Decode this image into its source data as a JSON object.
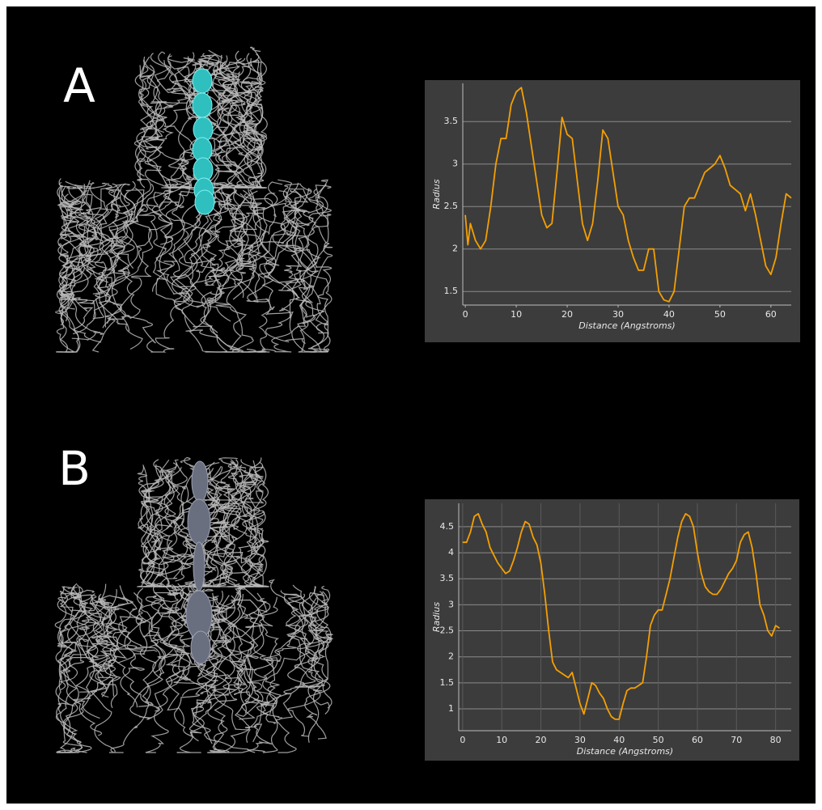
{
  "panel_labels": [
    "A",
    "B"
  ],
  "chart_data": [
    {
      "type": "line",
      "xlabel": "Distance (Angstroms)",
      "ylabel": "Radius",
      "color": "#f5a000",
      "grid": "y",
      "x": [
        0,
        0.5,
        1,
        2,
        3,
        4,
        5,
        6,
        7,
        8,
        9,
        10,
        11,
        12,
        13,
        14,
        15,
        16,
        17,
        18,
        19,
        20,
        21,
        22,
        23,
        24,
        25,
        26,
        27,
        28,
        29,
        30,
        31,
        32,
        33,
        34,
        35,
        36,
        37,
        38,
        39,
        40,
        41,
        42,
        43,
        44,
        45,
        46,
        47,
        48,
        49,
        50,
        51,
        52,
        53,
        54,
        55,
        56,
        57,
        58,
        59,
        60,
        61,
        62,
        63,
        64
      ],
      "values": [
        2.4,
        2.05,
        2.3,
        2.1,
        2.0,
        2.1,
        2.5,
        3.0,
        3.3,
        3.3,
        3.7,
        3.85,
        3.9,
        3.6,
        3.2,
        2.8,
        2.4,
        2.25,
        2.3,
        2.9,
        3.55,
        3.35,
        3.3,
        2.8,
        2.3,
        2.1,
        2.3,
        2.8,
        3.4,
        3.3,
        2.9,
        2.5,
        2.4,
        2.1,
        1.9,
        1.75,
        1.75,
        2.0,
        2.0,
        1.5,
        1.4,
        1.38,
        1.5,
        2.0,
        2.5,
        2.6,
        2.6,
        2.75,
        2.9,
        2.95,
        3.0,
        3.1,
        2.95,
        2.75,
        2.7,
        2.65,
        2.45,
        2.65,
        2.4,
        2.1,
        1.8,
        1.7,
        1.9,
        2.3,
        2.65,
        2.6
      ],
      "xlim": [
        -0.5,
        64
      ],
      "ylim": [
        1.34,
        3.95
      ],
      "xticks": [
        0,
        10,
        20,
        30,
        40,
        50,
        60
      ],
      "yticks": [
        1.5,
        2,
        2.5,
        3,
        3.5
      ]
    },
    {
      "type": "line",
      "xlabel": "Distance (Angstroms)",
      "ylabel": "Radius",
      "color": "#f5a000",
      "grid": "both",
      "x": [
        0,
        1,
        2,
        3,
        4,
        5,
        6,
        7,
        8,
        9,
        10,
        11,
        12,
        13,
        14,
        15,
        16,
        17,
        18,
        19,
        20,
        21,
        22,
        23,
        24,
        25,
        26,
        27,
        28,
        29,
        30,
        31,
        32,
        33,
        34,
        35,
        36,
        37,
        38,
        39,
        40,
        41,
        42,
        43,
        44,
        45,
        46,
        47,
        48,
        49,
        50,
        51,
        52,
        53,
        54,
        55,
        56,
        57,
        58,
        59,
        60,
        61,
        62,
        63,
        64,
        65,
        66,
        67,
        68,
        69,
        70,
        71,
        72,
        73,
        74,
        75,
        76,
        77,
        78,
        79,
        80,
        81
      ],
      "values": [
        4.2,
        4.2,
        4.4,
        4.7,
        4.75,
        4.55,
        4.4,
        4.1,
        3.95,
        3.8,
        3.7,
        3.6,
        3.65,
        3.85,
        4.1,
        4.4,
        4.6,
        4.55,
        4.3,
        4.15,
        3.8,
        3.2,
        2.5,
        1.9,
        1.75,
        1.7,
        1.65,
        1.6,
        1.7,
        1.4,
        1.1,
        0.9,
        1.2,
        1.5,
        1.45,
        1.3,
        1.2,
        1.0,
        0.85,
        0.8,
        0.8,
        1.1,
        1.35,
        1.4,
        1.4,
        1.45,
        1.5,
        2.0,
        2.6,
        2.8,
        2.9,
        2.9,
        3.2,
        3.5,
        3.9,
        4.3,
        4.6,
        4.75,
        4.7,
        4.5,
        4.0,
        3.6,
        3.35,
        3.25,
        3.2,
        3.2,
        3.3,
        3.45,
        3.6,
        3.7,
        3.85,
        4.2,
        4.35,
        4.4,
        4.1,
        3.6,
        3.0,
        2.8,
        2.5,
        2.4,
        2.6,
        2.55
      ],
      "xlim": [
        -1,
        84
      ],
      "ylim": [
        0.58,
        4.95
      ],
      "xticks": [
        0,
        10,
        20,
        30,
        40,
        50,
        60,
        70,
        80
      ],
      "yticks": [
        1,
        1.5,
        2,
        2.5,
        3,
        3.5,
        4,
        4.5
      ]
    }
  ]
}
